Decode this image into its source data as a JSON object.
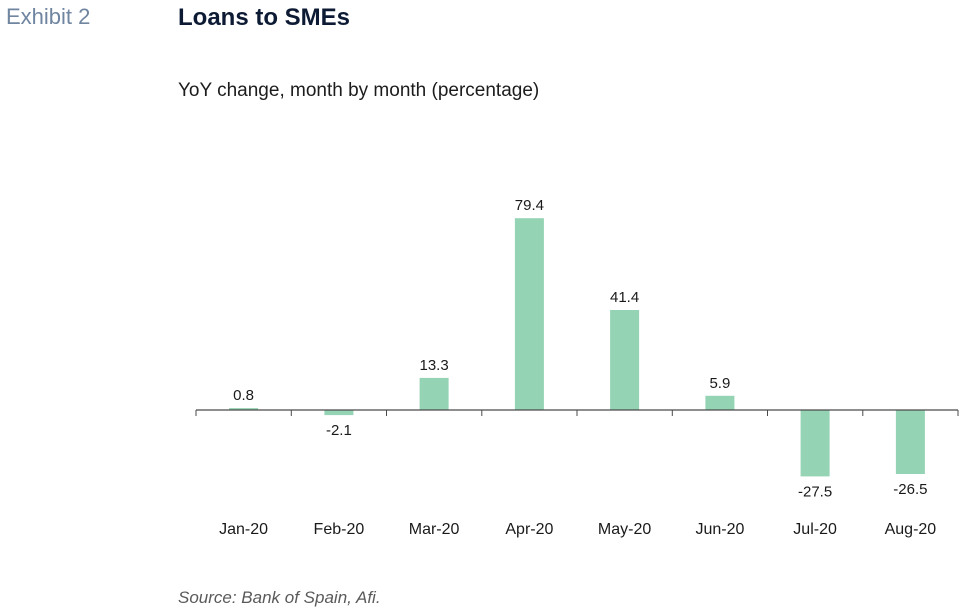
{
  "header": {
    "exhibit": "Exhibit 2",
    "title": "Loans to SMEs",
    "subtitle": "YoY change, month by month (percentage)"
  },
  "footer": {
    "source": "Source: Bank of Spain, Afi."
  },
  "chart_data": {
    "type": "bar",
    "title": "Loans to SMEs",
    "subtitle": "YoY change, month by month (percentage)",
    "categories": [
      "Jan-20",
      "Feb-20",
      "Mar-20",
      "Apr-20",
      "May-20",
      "Jun-20",
      "Jul-20",
      "Aug-20"
    ],
    "values": [
      0.8,
      -2.1,
      13.3,
      79.4,
      41.4,
      5.9,
      -27.5,
      -26.5
    ],
    "value_labels": [
      "0.8",
      "-2.1",
      "13.3",
      "79.4",
      "41.4",
      "5.9",
      "-27.5",
      "-26.5"
    ],
    "bar_color": "#94d3b3",
    "axis_color": "#4a4a4a",
    "ylim": [
      -30,
      85
    ],
    "grid": false,
    "legend": "none",
    "xlabel": "",
    "ylabel": ""
  }
}
